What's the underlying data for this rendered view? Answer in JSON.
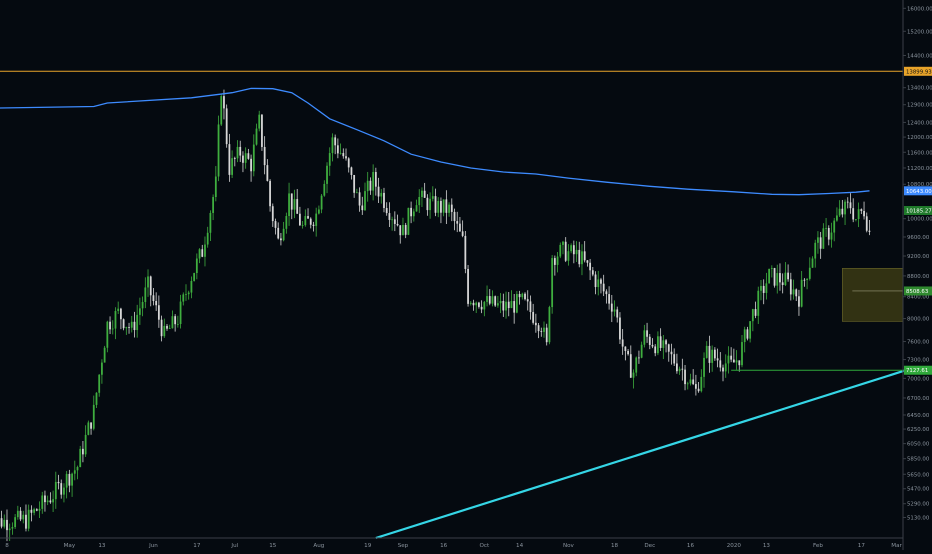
{
  "colors": {
    "background": "#050a10",
    "axis_text": "#8b949e",
    "axis_line": "#3a3f47",
    "up": "#3fae3f",
    "down": "#d7d7d7",
    "ma": "#3d8bff",
    "resistance": "#e8a42a",
    "trendline": "#35d6e6",
    "support": "#2fa83a",
    "zone": "#3b3a14"
  },
  "chart_data": {
    "type": "candlestick",
    "title": "",
    "xlabel": "",
    "ylabel": "",
    "ylim": [
      4900,
      16300
    ],
    "grid": false,
    "x_ticks": [
      {
        "label": "8",
        "date": "2019-04-08"
      },
      {
        "label": "May",
        "date": "2019-05-01"
      },
      {
        "label": "13",
        "date": "2019-05-13"
      },
      {
        "label": "Jun",
        "date": "2019-06-01"
      },
      {
        "label": "17",
        "date": "2019-06-17"
      },
      {
        "label": "Jul",
        "date": "2019-07-01"
      },
      {
        "label": "15",
        "date": "2019-07-15"
      },
      {
        "label": "Aug",
        "date": "2019-08-01"
      },
      {
        "label": "19",
        "date": "2019-08-19"
      },
      {
        "label": "Sep",
        "date": "2019-09-01"
      },
      {
        "label": "16",
        "date": "2019-09-16"
      },
      {
        "label": "Oct",
        "date": "2019-10-01"
      },
      {
        "label": "14",
        "date": "2019-10-14"
      },
      {
        "label": "Nov",
        "date": "2019-11-01"
      },
      {
        "label": "18",
        "date": "2019-11-18"
      },
      {
        "label": "Dec",
        "date": "2019-12-01"
      },
      {
        "label": "16",
        "date": "2019-12-16"
      },
      {
        "label": "2020",
        "date": "2020-01-01"
      },
      {
        "label": "13",
        "date": "2020-01-13"
      },
      {
        "label": "Feb",
        "date": "2020-02-01"
      },
      {
        "label": "17",
        "date": "2020-02-17"
      },
      {
        "label": "Mar",
        "date": "2020-03-01"
      }
    ],
    "y_ticks": [
      "16000.00",
      "15200.00",
      "14400.00",
      "13400.00",
      "12900.00",
      "12400.00",
      "12000.00",
      "11600.00",
      "11200.00",
      "10800.00",
      "10000.00",
      "9600.00",
      "9200.00",
      "8800.00",
      "8400.00",
      "8000.00",
      "7600.00",
      "7300.00",
      "7000.00",
      "6700.00",
      "6450.00",
      "6250.00",
      "6050.00",
      "5850.00",
      "5650.00",
      "5470.00",
      "5290.00",
      "5130.00"
    ],
    "price_labels": [
      {
        "text": "13899.93",
        "price": 13900,
        "role": "resistance"
      },
      {
        "text": "10643.00",
        "price": 10643,
        "role": "ma"
      },
      {
        "text": "10185.27",
        "price": 10185,
        "role": "last"
      },
      {
        "text": "8508.63",
        "price": 8509,
        "role": "zone"
      },
      {
        "text": "7127.61",
        "price": 7128,
        "role": "support"
      }
    ],
    "series_path": [
      [
        "2019-04-01",
        5080
      ],
      [
        "2019-04-15",
        5100
      ],
      [
        "2019-04-25",
        5400
      ],
      [
        "2019-05-04",
        5750
      ],
      [
        "2019-05-10",
        6500
      ],
      [
        "2019-05-15",
        7900
      ],
      [
        "2019-05-19",
        8100
      ],
      [
        "2019-05-24",
        7800
      ],
      [
        "2019-05-30",
        8600
      ],
      [
        "2019-06-05",
        7700
      ],
      [
        "2019-06-10",
        8000
      ],
      [
        "2019-06-15",
        8800
      ],
      [
        "2019-06-19",
        9300
      ],
      [
        "2019-06-24",
        10800
      ],
      [
        "2019-06-26",
        13400
      ],
      [
        "2019-06-29",
        11200
      ],
      [
        "2019-07-03",
        11600
      ],
      [
        "2019-07-07",
        11300
      ],
      [
        "2019-07-10",
        12400
      ],
      [
        "2019-07-14",
        10300
      ],
      [
        "2019-07-17",
        9500
      ],
      [
        "2019-07-21",
        10500
      ],
      [
        "2019-07-26",
        9800
      ],
      [
        "2019-07-31",
        10100
      ],
      [
        "2019-08-06",
        11900
      ],
      [
        "2019-08-10",
        11500
      ],
      [
        "2019-08-16",
        10300
      ],
      [
        "2019-08-21",
        10900
      ],
      [
        "2019-08-27",
        10200
      ],
      [
        "2019-09-01",
        9700
      ],
      [
        "2019-09-06",
        10500
      ],
      [
        "2019-09-12",
        10300
      ],
      [
        "2019-09-18",
        10200
      ],
      [
        "2019-09-23",
        9500
      ],
      [
        "2019-09-25",
        8400
      ],
      [
        "2019-10-01",
        8300
      ],
      [
        "2019-10-08",
        8200
      ],
      [
        "2019-10-15",
        8300
      ],
      [
        "2019-10-22",
        7900
      ],
      [
        "2019-10-24",
        7500
      ],
      [
        "2019-10-26",
        9200
      ],
      [
        "2019-10-30",
        9300
      ],
      [
        "2019-11-05",
        9200
      ],
      [
        "2019-11-10",
        8800
      ],
      [
        "2019-11-18",
        8200
      ],
      [
        "2019-11-22",
        7300
      ],
      [
        "2019-11-25",
        7100
      ],
      [
        "2019-11-29",
        7700
      ],
      [
        "2019-12-05",
        7500
      ],
      [
        "2019-12-12",
        7200
      ],
      [
        "2019-12-18",
        6800
      ],
      [
        "2019-12-22",
        7400
      ],
      [
        "2019-12-31",
        7200
      ],
      [
        "2020-01-03",
        7350
      ],
      [
        "2020-01-08",
        8100
      ],
      [
        "2020-01-14",
        8800
      ],
      [
        "2020-01-20",
        8700
      ],
      [
        "2020-01-25",
        8400
      ],
      [
        "2020-01-31",
        9400
      ],
      [
        "2020-02-05",
        9700
      ],
      [
        "2020-02-09",
        10100
      ],
      [
        "2020-02-13",
        10300
      ],
      [
        "2020-02-15",
        10000
      ],
      [
        "2020-02-18",
        10200
      ],
      [
        "2020-02-20",
        9700
      ]
    ],
    "moving_average": [
      [
        "2019-04-01",
        12800
      ],
      [
        "2019-05-10",
        12850
      ],
      [
        "2019-05-15",
        12950
      ],
      [
        "2019-06-15",
        13100
      ],
      [
        "2019-06-30",
        13250
      ],
      [
        "2019-07-07",
        13380
      ],
      [
        "2019-07-15",
        13370
      ],
      [
        "2019-07-22",
        13250
      ],
      [
        "2019-07-28",
        12950
      ],
      [
        "2019-08-05",
        12500
      ],
      [
        "2019-08-15",
        12200
      ],
      [
        "2019-08-25",
        11900
      ],
      [
        "2019-09-04",
        11550
      ],
      [
        "2019-09-15",
        11350
      ],
      [
        "2019-09-26",
        11200
      ],
      [
        "2019-10-08",
        11100
      ],
      [
        "2019-10-20",
        11050
      ],
      [
        "2019-11-01",
        10950
      ],
      [
        "2019-11-15",
        10850
      ],
      [
        "2019-12-01",
        10750
      ],
      [
        "2019-12-15",
        10680
      ],
      [
        "2020-01-01",
        10620
      ],
      [
        "2020-01-15",
        10560
      ],
      [
        "2020-01-25",
        10550
      ],
      [
        "2020-02-05",
        10580
      ],
      [
        "2020-02-15",
        10610
      ],
      [
        "2020-02-20",
        10643
      ]
    ],
    "resistance_level": 13900,
    "trendline": {
      "start": [
        "2019-08-22",
        4900
      ],
      "end": [
        "2020-03-06",
        7150
      ]
    },
    "support_line": {
      "start": [
        "2019-12-31",
        7128
      ],
      "end": [
        "2020-03-06",
        7128
      ]
    },
    "zone": {
      "start": "2020-02-10",
      "end": "2020-03-06",
      "low": 7950,
      "high": 8950
    }
  }
}
